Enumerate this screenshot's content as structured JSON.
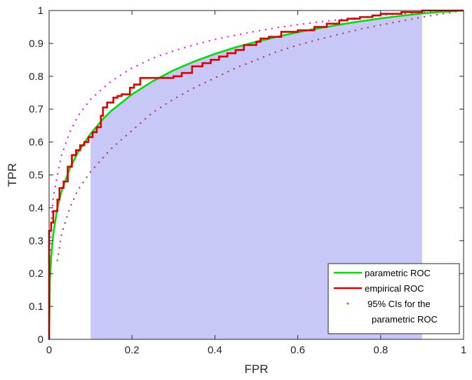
{
  "chart_data": {
    "type": "line",
    "title": "",
    "xlabel": "FPR",
    "ylabel": "TPR",
    "xlim": [
      0,
      1
    ],
    "ylim": [
      0,
      1
    ],
    "xticks": [
      0,
      0.2,
      0.4,
      0.6,
      0.8,
      1
    ],
    "xtick_labels": [
      "0",
      "0.2",
      "0.4",
      "0.6",
      "0.8",
      "1"
    ],
    "yticks": [
      0,
      0.1,
      0.2,
      0.3,
      0.4,
      0.5,
      0.6,
      0.7,
      0.8,
      0.9,
      1
    ],
    "ytick_labels": [
      "0",
      "0.1",
      "0.2",
      "0.3",
      "0.4",
      "0.5",
      "0.6",
      "0.7",
      "0.8",
      "0.9",
      "1"
    ],
    "grid": false,
    "legend_position": "bottom-right",
    "shaded_region": {
      "x_from": 0.1,
      "x_to": 0.9,
      "color": "#c8c8f8",
      "under_series": "parametric ROC"
    },
    "series": [
      {
        "name": "parametric ROC",
        "style": "solid",
        "color": "#00e000",
        "x": [
          0,
          0.002,
          0.005,
          0.01,
          0.02,
          0.03,
          0.05,
          0.07,
          0.1,
          0.13,
          0.15,
          0.2,
          0.25,
          0.3,
          0.35,
          0.4,
          0.45,
          0.5,
          0.55,
          0.6,
          0.65,
          0.7,
          0.75,
          0.8,
          0.85,
          0.9,
          0.95,
          1
        ],
        "y": [
          0,
          0.18,
          0.25,
          0.32,
          0.4,
          0.45,
          0.52,
          0.57,
          0.625,
          0.67,
          0.695,
          0.745,
          0.785,
          0.818,
          0.845,
          0.868,
          0.888,
          0.905,
          0.92,
          0.934,
          0.946,
          0.957,
          0.967,
          0.976,
          0.984,
          0.991,
          0.996,
          1
        ]
      },
      {
        "name": "empirical ROC",
        "style": "steps",
        "color": "#e00000",
        "x": [
          0,
          0,
          0.005,
          0.005,
          0.01,
          0.01,
          0.02,
          0.02,
          0.025,
          0.025,
          0.035,
          0.035,
          0.045,
          0.045,
          0.055,
          0.055,
          0.065,
          0.065,
          0.075,
          0.075,
          0.085,
          0.085,
          0.095,
          0.095,
          0.105,
          0.105,
          0.115,
          0.115,
          0.125,
          0.125,
          0.13,
          0.13,
          0.14,
          0.14,
          0.155,
          0.155,
          0.165,
          0.165,
          0.175,
          0.175,
          0.195,
          0.195,
          0.205,
          0.205,
          0.22,
          0.22,
          0.225,
          0.225,
          0.3,
          0.3,
          0.32,
          0.32,
          0.345,
          0.345,
          0.37,
          0.37,
          0.39,
          0.39,
          0.41,
          0.41,
          0.43,
          0.43,
          0.45,
          0.45,
          0.47,
          0.47,
          0.5,
          0.5,
          0.51,
          0.51,
          0.53,
          0.53,
          0.56,
          0.56,
          0.6,
          0.6,
          0.64,
          0.64,
          0.67,
          0.67,
          0.7,
          0.7,
          0.72,
          0.72,
          0.75,
          0.75,
          0.78,
          0.78,
          0.8,
          0.8,
          0.85,
          0.85,
          0.9,
          0.9,
          0.93,
          0.93,
          1
        ],
        "y": [
          0,
          0.33,
          0.33,
          0.355,
          0.355,
          0.39,
          0.39,
          0.425,
          0.425,
          0.46,
          0.46,
          0.48,
          0.48,
          0.525,
          0.525,
          0.56,
          0.56,
          0.575,
          0.575,
          0.59,
          0.59,
          0.6,
          0.6,
          0.615,
          0.615,
          0.63,
          0.63,
          0.645,
          0.645,
          0.68,
          0.68,
          0.705,
          0.705,
          0.72,
          0.72,
          0.735,
          0.735,
          0.74,
          0.74,
          0.745,
          0.745,
          0.765,
          0.765,
          0.775,
          0.775,
          0.795,
          0.795,
          0.795,
          0.795,
          0.8,
          0.8,
          0.81,
          0.81,
          0.83,
          0.83,
          0.84,
          0.84,
          0.85,
          0.85,
          0.86,
          0.86,
          0.87,
          0.87,
          0.88,
          0.88,
          0.895,
          0.895,
          0.905,
          0.905,
          0.915,
          0.915,
          0.92,
          0.92,
          0.935,
          0.935,
          0.94,
          0.94,
          0.95,
          0.95,
          0.96,
          0.96,
          0.97,
          0.97,
          0.975,
          0.975,
          0.98,
          0.98,
          0.985,
          0.985,
          0.99,
          0.99,
          0.995,
          0.995,
          1,
          1,
          1,
          1
        ]
      },
      {
        "name": "95% CIs for the parametric ROC",
        "style": "dotted",
        "color": "#ff00ff",
        "x": [
          0,
          0.005,
          0.01,
          0.02,
          0.03,
          0.05,
          0.07,
          0.1,
          0.15,
          0.2,
          0.25,
          0.3,
          0.35,
          0.4,
          0.45,
          0.5,
          0.55,
          0.6,
          0.65,
          0.7,
          0.75,
          0.8,
          0.85,
          0.9,
          0.95,
          1
        ],
        "y": [
          0,
          0.36,
          0.43,
          0.5,
          0.56,
          0.63,
          0.68,
          0.73,
          0.785,
          0.825,
          0.855,
          0.877,
          0.896,
          0.912,
          0.925,
          0.937,
          0.948,
          0.957,
          0.965,
          0.972,
          0.979,
          0.985,
          0.99,
          0.994,
          0.998,
          1
        ]
      },
      {
        "name": "95% CIs lower",
        "style": "dotted",
        "color": "#b03030",
        "x": [
          0.02,
          0.03,
          0.05,
          0.07,
          0.1,
          0.15,
          0.2,
          0.25,
          0.3,
          0.35,
          0.4,
          0.45,
          0.5,
          0.55,
          0.6,
          0.65,
          0.7,
          0.75,
          0.8,
          0.85,
          0.9,
          0.95,
          1
        ],
        "y": [
          0.24,
          0.32,
          0.4,
          0.455,
          0.51,
          0.58,
          0.635,
          0.69,
          0.73,
          0.765,
          0.795,
          0.825,
          0.85,
          0.875,
          0.895,
          0.912,
          0.928,
          0.943,
          0.956,
          0.968,
          0.98,
          0.99,
          1
        ]
      }
    ]
  },
  "legend": {
    "items": [
      {
        "label": "parametric ROC",
        "color": "#00e000",
        "style": "solid"
      },
      {
        "label": "empirical ROC",
        "color": "#e00000",
        "style": "solid"
      },
      {
        "label": "95% CIs for the",
        "label2": "parametric ROC",
        "color": "#c06030",
        "style": "dot"
      }
    ]
  }
}
